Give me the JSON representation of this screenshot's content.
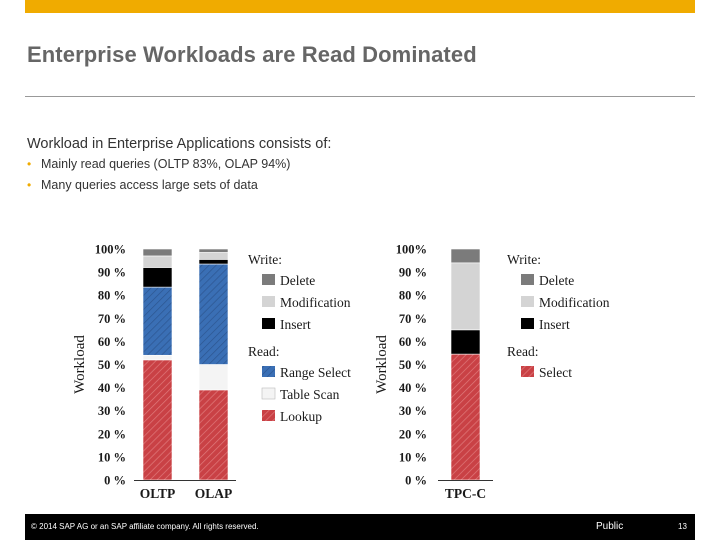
{
  "slide": {
    "title": "Enterprise Workloads are Read Dominated",
    "intro": "Workload in Enterprise Applications consists of:",
    "bullets": [
      "Mainly read queries (OLTP 83%, OLAP 94%)",
      "Many queries access large sets of data"
    ]
  },
  "footer": {
    "copyright": "© 2014 SAP AG or an SAP affiliate company. All rights reserved.",
    "public_label": "Public",
    "page_number": "13"
  },
  "colors": {
    "brand_bar": "#f0ab00",
    "delete": "#7b7b7b",
    "modification": "#d4d4d4",
    "insert": "#000000",
    "range_select": "#3a6fb5",
    "table_scan": "#f4f4f4",
    "lookup": "#c94145",
    "select": "#c94145"
  },
  "chart_data": [
    {
      "type": "bar",
      "stacked": true,
      "ylabel": "Workload",
      "ylim": [
        0,
        100
      ],
      "yticks": [
        "0 %",
        "10 %",
        "20 %",
        "30 %",
        "40 %",
        "50 %",
        "60 %",
        "70 %",
        "80 %",
        "90 %",
        "100%"
      ],
      "categories": [
        "OLTP",
        "OLAP"
      ],
      "series": [
        {
          "name": "Lookup",
          "group": "Read:",
          "color_key": "lookup",
          "values": [
            52,
            39
          ]
        },
        {
          "name": "Table Scan",
          "group": "Read:",
          "color_key": "table_scan",
          "values": [
            2,
            11
          ]
        },
        {
          "name": "Range Select",
          "group": "Read:",
          "color_key": "range_select",
          "values": [
            29.5,
            43.5
          ]
        },
        {
          "name": "Insert",
          "group": "Write:",
          "color_key": "insert",
          "values": [
            8.5,
            2
          ]
        },
        {
          "name": "Modification",
          "group": "Write:",
          "color_key": "modification",
          "values": [
            5,
            3
          ]
        },
        {
          "name": "Delete",
          "group": "Write:",
          "color_key": "delete",
          "values": [
            3,
            1.5
          ]
        }
      ],
      "legend_groups": [
        {
          "heading": "Write:",
          "items": [
            "Delete",
            "Modification",
            "Insert"
          ]
        },
        {
          "heading": "Read:",
          "items": [
            "Range Select",
            "Table Scan",
            "Lookup"
          ]
        }
      ]
    },
    {
      "type": "bar",
      "stacked": true,
      "ylabel": "Workload",
      "ylim": [
        0,
        100
      ],
      "yticks": [
        "0 %",
        "10 %",
        "20 %",
        "30 %",
        "40 %",
        "50 %",
        "60 %",
        "70 %",
        "80 %",
        "90 %",
        "100%"
      ],
      "categories": [
        "TPC-C"
      ],
      "series": [
        {
          "name": "Select",
          "group": "Read:",
          "color_key": "select",
          "values": [
            54.5
          ]
        },
        {
          "name": "Insert",
          "group": "Write:",
          "color_key": "insert",
          "values": [
            10.5
          ]
        },
        {
          "name": "Modification",
          "group": "Write:",
          "color_key": "modification",
          "values": [
            29
          ]
        },
        {
          "name": "Delete",
          "group": "Write:",
          "color_key": "delete",
          "values": [
            6
          ]
        }
      ],
      "legend_groups": [
        {
          "heading": "Write:",
          "items": [
            "Delete",
            "Modification",
            "Insert"
          ]
        },
        {
          "heading": "Read:",
          "items": [
            "Select"
          ]
        }
      ]
    }
  ]
}
